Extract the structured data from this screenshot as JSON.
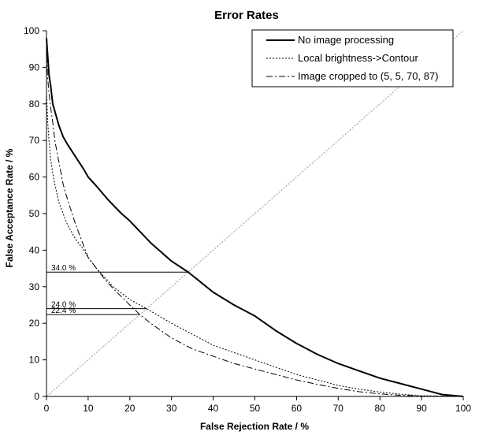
{
  "chart_data": {
    "type": "line",
    "title": "Error Rates",
    "xlabel": "False Rejection Rate / %",
    "ylabel": "False Acceptance Rate / %",
    "xlim": [
      0,
      100
    ],
    "ylim": [
      0,
      100
    ],
    "x_ticks": [
      0,
      10,
      20,
      30,
      40,
      50,
      60,
      70,
      80,
      90,
      100
    ],
    "y_ticks": [
      0,
      10,
      20,
      30,
      40,
      50,
      60,
      70,
      80,
      90,
      100
    ],
    "grid": false,
    "legend_position": "top-right",
    "series": [
      {
        "name": "No image processing",
        "style": "solid",
        "x": [
          0,
          0.3,
          0.6,
          1,
          1.5,
          2,
          3,
          4,
          5,
          7,
          9,
          10,
          12,
          15,
          18,
          20,
          25,
          30,
          34,
          40,
          45,
          50,
          55,
          60,
          65,
          70,
          75,
          80,
          85,
          90,
          95,
          100
        ],
        "y": [
          98,
          93,
          88,
          85,
          80,
          78,
          74,
          71,
          69,
          65.5,
          62,
          60,
          57.5,
          53.5,
          50,
          48,
          42,
          37,
          34,
          28.5,
          25,
          22,
          18,
          14.5,
          11.5,
          9,
          7,
          5,
          3.5,
          2,
          0.5,
          0
        ]
      },
      {
        "name": "Local brightness->Contour",
        "style": "dotted",
        "x": [
          0,
          0.3,
          0.6,
          1,
          1.5,
          2,
          3,
          4,
          5,
          7,
          9,
          10,
          12,
          14,
          16,
          20,
          24,
          30,
          35,
          40,
          45,
          50,
          55,
          60,
          65,
          70,
          75,
          80,
          85,
          90,
          100
        ],
        "y": [
          83,
          75,
          70,
          65,
          61,
          58,
          53,
          50,
          47,
          43,
          40,
          38,
          35,
          32.5,
          30,
          26.5,
          24,
          20,
          17,
          14,
          12,
          10,
          8,
          6,
          4.5,
          3,
          2,
          1.2,
          0.6,
          0.2,
          0
        ]
      },
      {
        "name": "Image cropped to (5, 5, 70, 87)",
        "style": "dash-dot",
        "x": [
          0,
          0.3,
          0.6,
          1,
          1.5,
          2,
          3,
          4,
          5,
          7,
          9,
          10,
          12,
          14,
          16,
          20,
          22.4,
          25,
          30,
          35,
          40,
          45,
          50,
          55,
          60,
          65,
          70,
          75,
          80,
          85,
          90,
          100
        ],
        "y": [
          93,
          87,
          83,
          79,
          75,
          70,
          64,
          58,
          54,
          47,
          41,
          38,
          35,
          32,
          29.5,
          25,
          22.4,
          20,
          16,
          13,
          11,
          9,
          7.5,
          6,
          4.5,
          3.3,
          2.2,
          1.3,
          0.7,
          0.3,
          0.1,
          0
        ]
      }
    ],
    "reference_line": {
      "style": "dotted",
      "x": [
        0,
        100
      ],
      "y": [
        0,
        100
      ]
    },
    "annotations": [
      {
        "label": "34.0 %",
        "y": 34.0,
        "x_end": 34.0
      },
      {
        "label": "24.0 %",
        "y": 24.0,
        "x_end": 24.0
      },
      {
        "label": "22.4 %",
        "y": 22.4,
        "x_end": 22.4
      }
    ]
  }
}
